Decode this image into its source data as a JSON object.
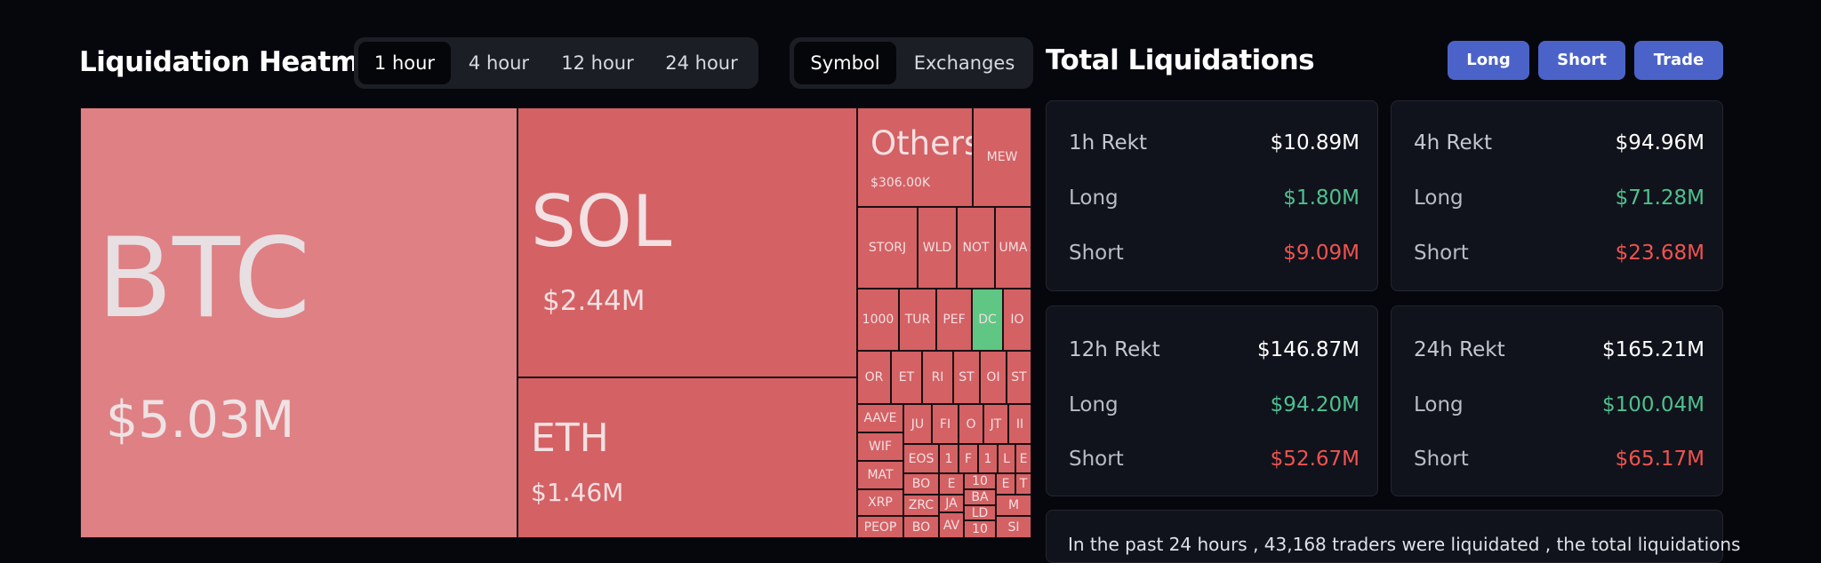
{
  "heatmap": {
    "title": "Liquidation Heatmap",
    "time_tabs": [
      "1 hour",
      "4 hour",
      "12 hour",
      "24 hour"
    ],
    "active_time_tab": "1 hour",
    "group_tabs": [
      "Symbol",
      "Exchanges"
    ],
    "active_group_tab": "Symbol",
    "tiles": [
      {
        "symbol": "BTC",
        "value": "$5.03M"
      },
      {
        "symbol": "SOL",
        "value": "$2.44M"
      },
      {
        "symbol": "ETH",
        "value": "$1.46M"
      },
      {
        "symbol": "Others",
        "value": "$306.00K"
      },
      {
        "symbol": "MEW"
      },
      {
        "symbol": "STORJ"
      },
      {
        "symbol": "WLD"
      },
      {
        "symbol": "NOT"
      },
      {
        "symbol": "UMA"
      },
      {
        "symbol": "1000"
      },
      {
        "symbol": "TUR"
      },
      {
        "symbol": "PEF"
      },
      {
        "symbol": "DC"
      },
      {
        "symbol": "IO"
      },
      {
        "symbol": "OR"
      },
      {
        "symbol": "ET"
      },
      {
        "symbol": "RI"
      },
      {
        "symbol": "ST"
      },
      {
        "symbol": "OI"
      },
      {
        "symbol": "ST"
      },
      {
        "symbol": "AAVE"
      },
      {
        "symbol": "JU"
      },
      {
        "symbol": "FI"
      },
      {
        "symbol": "O"
      },
      {
        "symbol": "JT"
      },
      {
        "symbol": "II"
      },
      {
        "symbol": "WIF"
      },
      {
        "symbol": "EOS"
      },
      {
        "symbol": "1"
      },
      {
        "symbol": "F"
      },
      {
        "symbol": "1"
      },
      {
        "symbol": "L"
      },
      {
        "symbol": "E"
      },
      {
        "symbol": "MAT"
      },
      {
        "symbol": "BO"
      },
      {
        "symbol": "E"
      },
      {
        "symbol": "10"
      },
      {
        "symbol": "E"
      },
      {
        "symbol": "T"
      },
      {
        "symbol": "XRP"
      },
      {
        "symbol": "ZRC"
      },
      {
        "symbol": "JA"
      },
      {
        "symbol": "BA"
      },
      {
        "symbol": "LD"
      },
      {
        "symbol": "M"
      },
      {
        "symbol": "PEOP"
      },
      {
        "symbol": "BO"
      },
      {
        "symbol": "AV"
      },
      {
        "symbol": "10"
      },
      {
        "symbol": "SI"
      }
    ]
  },
  "totals": {
    "title": "Total Liquidations",
    "buttons": [
      "Long",
      "Short",
      "Trade"
    ],
    "cards": [
      {
        "label": "1h Rekt",
        "total": "$10.89M",
        "long_label": "Long",
        "long": "$1.80M",
        "short_label": "Short",
        "short": "$9.09M"
      },
      {
        "label": "4h Rekt",
        "total": "$94.96M",
        "long_label": "Long",
        "long": "$71.28M",
        "short_label": "Short",
        "short": "$23.68M"
      },
      {
        "label": "12h Rekt",
        "total": "$146.87M",
        "long_label": "Long",
        "long": "$94.20M",
        "short_label": "Short",
        "short": "$52.67M"
      },
      {
        "label": "24h Rekt",
        "total": "$165.21M",
        "long_label": "Long",
        "long": "$100.04M",
        "short_label": "Short",
        "short": "$65.17M"
      }
    ],
    "summary": "In the past 24 hours , 43,168 traders were liquidated , the total liquidations"
  },
  "colors": {
    "loss_tile": "#d46164",
    "gain_tile": "#5fc684",
    "accent_button": "#4b63c9",
    "long_text": "#4fc08f",
    "short_text": "#ef5350"
  }
}
